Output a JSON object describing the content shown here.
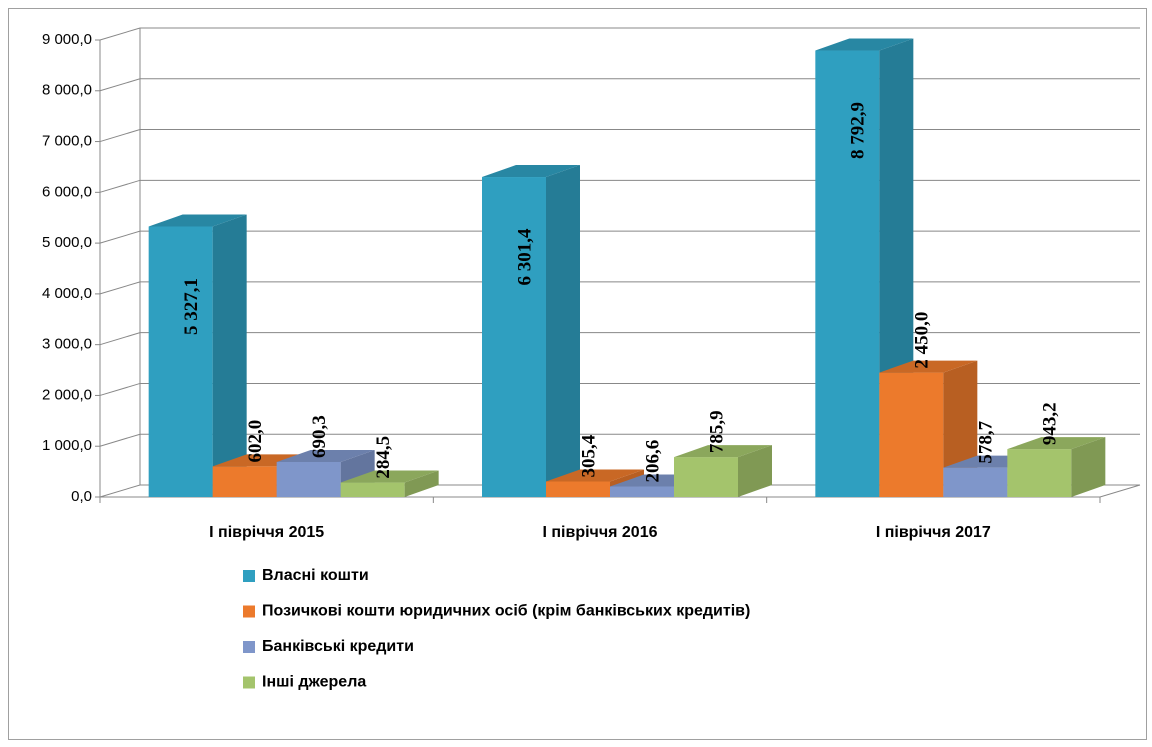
{
  "chart_data": {
    "type": "bar3d",
    "categories": [
      "І півріччя 2015",
      "І півріччя 2016",
      "І півріччя 2017"
    ],
    "series": [
      {
        "name": "Власні кошти",
        "color": "#2f9fc0",
        "values": [
          5327.1,
          6301.4,
          8792.9
        ],
        "value_labels": [
          "5 327,1",
          "6 301,4",
          "8 792,9"
        ]
      },
      {
        "name": "Позичкові кошти юридичних осіб (крім банківських кредитів)",
        "color": "#ec7a2c",
        "values": [
          602.0,
          305.4,
          2450.0
        ],
        "value_labels": [
          "602,0",
          "305,4",
          "2 450,0"
        ]
      },
      {
        "name": "Банківські кредити",
        "color": "#7f96ca",
        "values": [
          690.3,
          206.6,
          578.7
        ],
        "value_labels": [
          "690,3",
          "206,6",
          "578,7"
        ]
      },
      {
        "name": "Інші джерела",
        "color": "#a4c46c",
        "values": [
          284.5,
          785.9,
          943.2
        ],
        "value_labels": [
          "284,5",
          "785,9",
          "943,2"
        ]
      }
    ],
    "ylim": [
      0,
      9000
    ],
    "yticks": [
      {
        "value": 0,
        "label": "0,0"
      },
      {
        "value": 1000,
        "label": "1 000,0"
      },
      {
        "value": 2000,
        "label": "2 000,0"
      },
      {
        "value": 3000,
        "label": "3 000,0"
      },
      {
        "value": 4000,
        "label": "4 000,0"
      },
      {
        "value": 5000,
        "label": "5 000,0"
      },
      {
        "value": 6000,
        "label": "6 000,0"
      },
      {
        "value": 7000,
        "label": "7 000,0"
      },
      {
        "value": 8000,
        "label": "8 000,0"
      },
      {
        "value": 9000,
        "label": "9 000,0"
      }
    ],
    "grid": true,
    "legend": "bottom"
  }
}
